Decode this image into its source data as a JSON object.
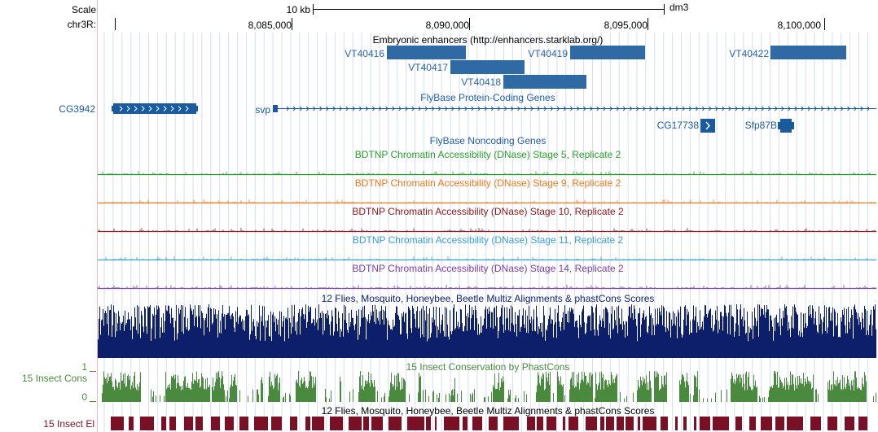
{
  "ruler": {
    "scale_label": "Scale",
    "chrom_label": "chr3R:",
    "scale_bar_label": "10 kb",
    "assembly": "dm3",
    "ticks": [
      "8,085,000",
      "8,090,000",
      "8,095,000",
      "8,100,000"
    ]
  },
  "enhancers": {
    "title": "Embryonic enhancers (http://enhancers.starklab.org/)",
    "items": [
      "VT40416",
      "VT40417",
      "VT40418",
      "VT40419",
      "VT40422"
    ]
  },
  "genes": {
    "title": "FlyBase Protein-Coding Genes",
    "items": [
      "CG3942",
      "svp",
      "CG17738",
      "Sfp87B"
    ]
  },
  "noncoding": {
    "title": "FlyBase Noncoding Genes"
  },
  "dnase_tracks": [
    {
      "title": "BDTNP Chromatin Accessibility (DNase) Stage 5, Replicate 2",
      "color": "#2ca02c"
    },
    {
      "title": "BDTNP Chromatin Accessibility (DNase) Stage 9, Replicate 2",
      "color": "#f07a1a"
    },
    {
      "title": "BDTNP Chromatin Accessibility (DNase) Stage 10, Replicate 2",
      "color": "#8b1a1a"
    },
    {
      "title": "BDTNP Chromatin Accessibility (DNase) Stage 11, Replicate 2",
      "color": "#3aa0d0"
    },
    {
      "title": "BDTNP Chromatin Accessibility (DNase) Stage 14, Replicate 2",
      "color": "#7b3fa0"
    }
  ],
  "multiz": {
    "title": "12 Flies, Mosquito, Honeybee, Beetle Multiz Alignments & phastCons Scores",
    "color": "#0d1f6b"
  },
  "phastcons": {
    "title": "15 Insect Conservation by PhastCons",
    "side_label": "15 Insect Cons",
    "max_label": "1",
    "min_label": "0",
    "color": "#4a8a3e"
  },
  "elements": {
    "title": "12 Flies, Mosquito, Honeybee, Beetle Multiz Alignments & phastCons Scores",
    "side_label": "15 Insect El",
    "color": "#7a1025"
  }
}
